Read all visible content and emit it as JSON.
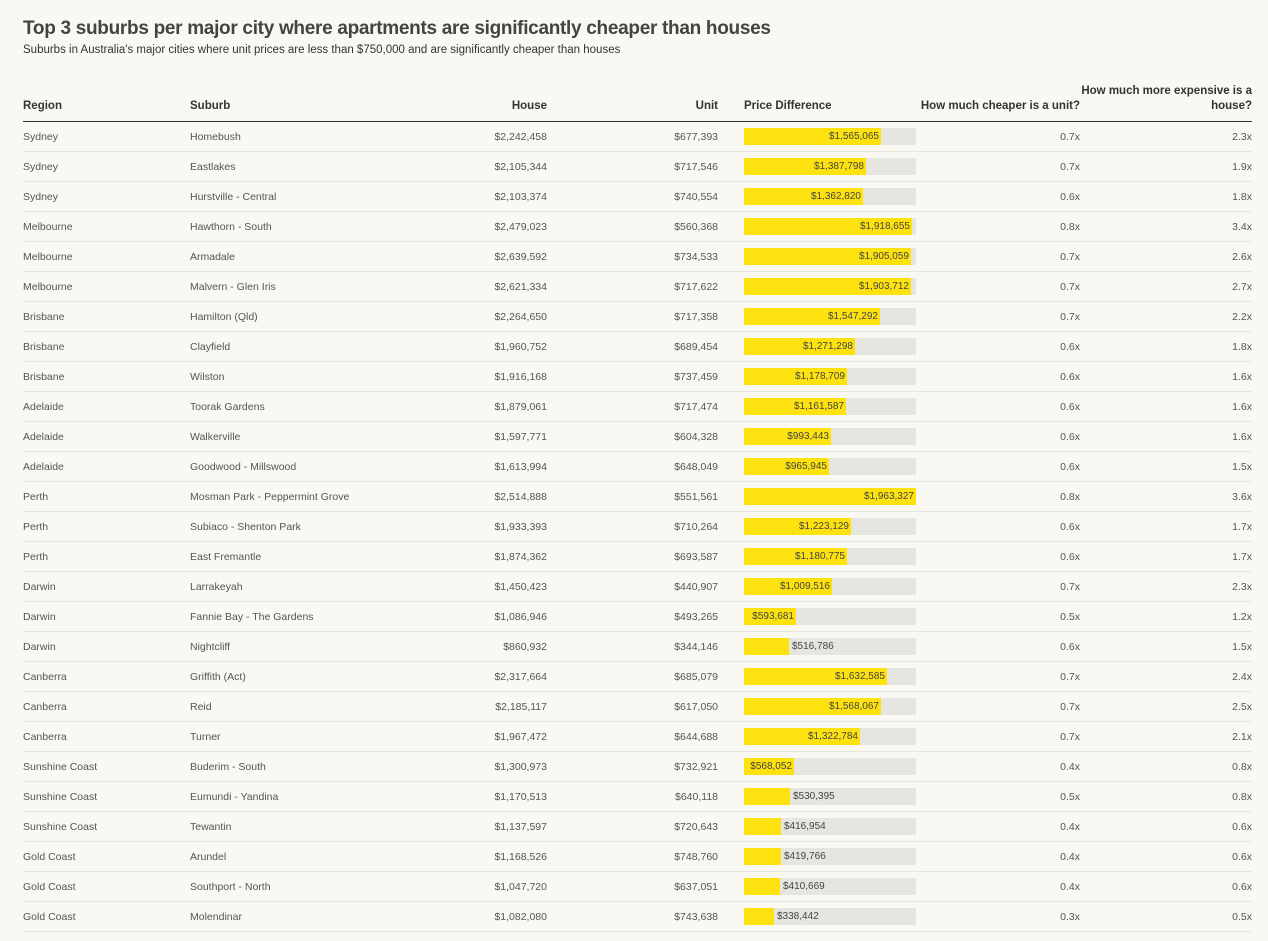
{
  "title": "Top 3 suburbs per major city where apartments are significantly cheaper than houses",
  "subtitle": "Suburbs in Australia's major cities where unit prices are less than $750,000 and are significantly cheaper than houses",
  "colors": {
    "bar": "#fde20f",
    "bar_bg": "#e6e5e0",
    "background": "#f9f8f2"
  },
  "chart_data": {
    "type": "table",
    "columns": [
      "Region",
      "Suburb",
      "House",
      "Unit",
      "Price Difference",
      "How much cheaper is a unit?",
      "How much more expensive is a house?"
    ],
    "bar_max": 1963327,
    "rows": [
      {
        "region": "Sydney",
        "suburb": "Homebush",
        "house": "$2,242,458",
        "unit": "$677,393",
        "diff": 1565065,
        "diff_label": "$1,565,065",
        "cheaper": "0.7x",
        "expensive": "2.3x"
      },
      {
        "region": "Sydney",
        "suburb": "Eastlakes",
        "house": "$2,105,344",
        "unit": "$717,546",
        "diff": 1387798,
        "diff_label": "$1,387,798",
        "cheaper": "0.7x",
        "expensive": "1.9x"
      },
      {
        "region": "Sydney",
        "suburb": "Hurstville - Central",
        "house": "$2,103,374",
        "unit": "$740,554",
        "diff": 1362820,
        "diff_label": "$1,362,820",
        "cheaper": "0.6x",
        "expensive": "1.8x"
      },
      {
        "region": "Melbourne",
        "suburb": "Hawthorn - South",
        "house": "$2,479,023",
        "unit": "$560,368",
        "diff": 1918655,
        "diff_label": "$1,918,655",
        "cheaper": "0.8x",
        "expensive": "3.4x"
      },
      {
        "region": "Melbourne",
        "suburb": "Armadale",
        "house": "$2,639,592",
        "unit": "$734,533",
        "diff": 1905059,
        "diff_label": "$1,905,059",
        "cheaper": "0.7x",
        "expensive": "2.6x"
      },
      {
        "region": "Melbourne",
        "suburb": "Malvern - Glen Iris",
        "house": "$2,621,334",
        "unit": "$717,622",
        "diff": 1903712,
        "diff_label": "$1,903,712",
        "cheaper": "0.7x",
        "expensive": "2.7x"
      },
      {
        "region": "Brisbane",
        "suburb": "Hamilton (Qld)",
        "house": "$2,264,650",
        "unit": "$717,358",
        "diff": 1547292,
        "diff_label": "$1,547,292",
        "cheaper": "0.7x",
        "expensive": "2.2x"
      },
      {
        "region": "Brisbane",
        "suburb": "Clayfield",
        "house": "$1,960,752",
        "unit": "$689,454",
        "diff": 1271298,
        "diff_label": "$1,271,298",
        "cheaper": "0.6x",
        "expensive": "1.8x"
      },
      {
        "region": "Brisbane",
        "suburb": "Wilston",
        "house": "$1,916,168",
        "unit": "$737,459",
        "diff": 1178709,
        "diff_label": "$1,178,709",
        "cheaper": "0.6x",
        "expensive": "1.6x"
      },
      {
        "region": "Adelaide",
        "suburb": "Toorak Gardens",
        "house": "$1,879,061",
        "unit": "$717,474",
        "diff": 1161587,
        "diff_label": "$1,161,587",
        "cheaper": "0.6x",
        "expensive": "1.6x"
      },
      {
        "region": "Adelaide",
        "suburb": "Walkerville",
        "house": "$1,597,771",
        "unit": "$604,328",
        "diff": 993443,
        "diff_label": "$993,443",
        "cheaper": "0.6x",
        "expensive": "1.6x"
      },
      {
        "region": "Adelaide",
        "suburb": "Goodwood - Millswood",
        "house": "$1,613,994",
        "unit": "$648,049",
        "diff": 965945,
        "diff_label": "$965,945",
        "cheaper": "0.6x",
        "expensive": "1.5x"
      },
      {
        "region": "Perth",
        "suburb": "Mosman Park - Peppermint Grove",
        "house": "$2,514,888",
        "unit": "$551,561",
        "diff": 1963327,
        "diff_label": "$1,963,327",
        "cheaper": "0.8x",
        "expensive": "3.6x"
      },
      {
        "region": "Perth",
        "suburb": "Subiaco - Shenton Park",
        "house": "$1,933,393",
        "unit": "$710,264",
        "diff": 1223129,
        "diff_label": "$1,223,129",
        "cheaper": "0.6x",
        "expensive": "1.7x"
      },
      {
        "region": "Perth",
        "suburb": "East Fremantle",
        "house": "$1,874,362",
        "unit": "$693,587",
        "diff": 1180775,
        "diff_label": "$1,180,775",
        "cheaper": "0.6x",
        "expensive": "1.7x"
      },
      {
        "region": "Darwin",
        "suburb": "Larrakeyah",
        "house": "$1,450,423",
        "unit": "$440,907",
        "diff": 1009516,
        "diff_label": "$1,009,516",
        "cheaper": "0.7x",
        "expensive": "2.3x"
      },
      {
        "region": "Darwin",
        "suburb": "Fannie Bay - The Gardens",
        "house": "$1,086,946",
        "unit": "$493,265",
        "diff": 593681,
        "diff_label": "$593,681",
        "cheaper": "0.5x",
        "expensive": "1.2x"
      },
      {
        "region": "Darwin",
        "suburb": "Nightcliff",
        "house": "$860,932",
        "unit": "$344,146",
        "diff": 516786,
        "diff_label": "$516,786",
        "cheaper": "0.6x",
        "expensive": "1.5x"
      },
      {
        "region": "Canberra",
        "suburb": "Griffith (Act)",
        "house": "$2,317,664",
        "unit": "$685,079",
        "diff": 1632585,
        "diff_label": "$1,632,585",
        "cheaper": "0.7x",
        "expensive": "2.4x"
      },
      {
        "region": "Canberra",
        "suburb": "Reid",
        "house": "$2,185,117",
        "unit": "$617,050",
        "diff": 1568067,
        "diff_label": "$1,568,067",
        "cheaper": "0.7x",
        "expensive": "2.5x"
      },
      {
        "region": "Canberra",
        "suburb": "Turner",
        "house": "$1,967,472",
        "unit": "$644,688",
        "diff": 1322784,
        "diff_label": "$1,322,784",
        "cheaper": "0.7x",
        "expensive": "2.1x"
      },
      {
        "region": "Sunshine Coast",
        "suburb": "Buderim - South",
        "house": "$1,300,973",
        "unit": "$732,921",
        "diff": 568052,
        "diff_label": "$568,052",
        "cheaper": "0.4x",
        "expensive": "0.8x"
      },
      {
        "region": "Sunshine Coast",
        "suburb": "Eumundi - Yandina",
        "house": "$1,170,513",
        "unit": "$640,118",
        "diff": 530395,
        "diff_label": "$530,395",
        "cheaper": "0.5x",
        "expensive": "0.8x"
      },
      {
        "region": "Sunshine Coast",
        "suburb": "Tewantin",
        "house": "$1,137,597",
        "unit": "$720,643",
        "diff": 416954,
        "diff_label": "$416,954",
        "cheaper": "0.4x",
        "expensive": "0.6x"
      },
      {
        "region": "Gold Coast",
        "suburb": "Arundel",
        "house": "$1,168,526",
        "unit": "$748,760",
        "diff": 419766,
        "diff_label": "$419,766",
        "cheaper": "0.4x",
        "expensive": "0.6x"
      },
      {
        "region": "Gold Coast",
        "suburb": "Southport - North",
        "house": "$1,047,720",
        "unit": "$637,051",
        "diff": 410669,
        "diff_label": "$410,669",
        "cheaper": "0.4x",
        "expensive": "0.6x"
      },
      {
        "region": "Gold Coast",
        "suburb": "Molendinar",
        "house": "$1,082,080",
        "unit": "$743,638",
        "diff": 338442,
        "diff_label": "$338,442",
        "cheaper": "0.3x",
        "expensive": "0.5x"
      }
    ]
  }
}
